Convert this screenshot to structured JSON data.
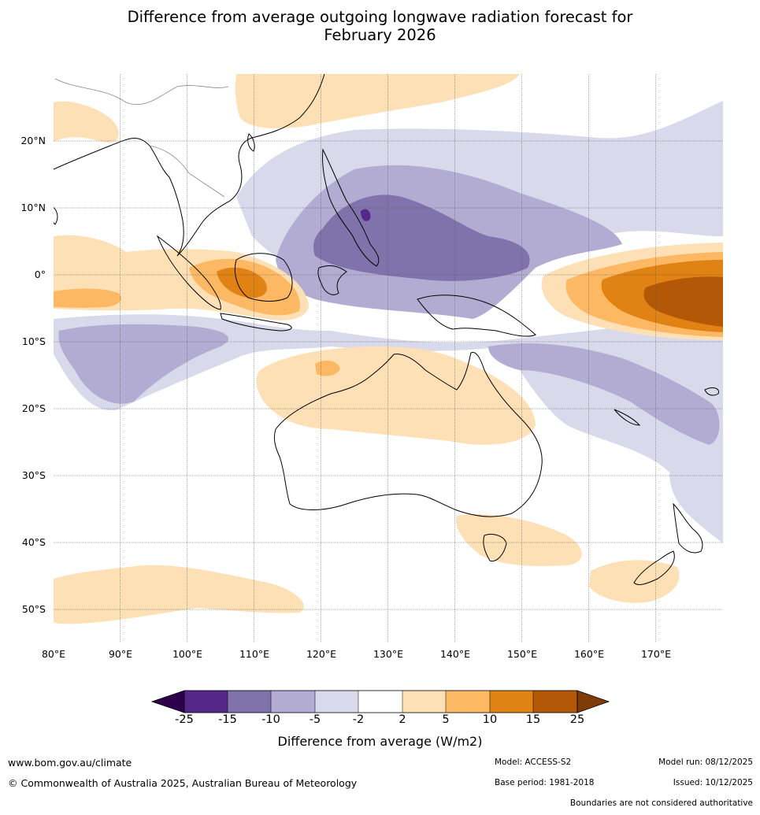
{
  "title": {
    "line1": "Difference from average outgoing longwave radiation forecast for",
    "line2": "February 2026"
  },
  "map": {
    "lat_labels": [
      "20°N",
      "10°N",
      "0°",
      "10°S",
      "20°S",
      "30°S",
      "40°S",
      "50°S"
    ],
    "lon_labels": [
      "80°E",
      "90°E",
      "100°E",
      "110°E",
      "120°E",
      "130°E",
      "140°E",
      "150°E",
      "160°E",
      "170°E"
    ],
    "extent": {
      "lon_min": 80,
      "lon_max": 180,
      "lat_min": -55,
      "lat_max": 30
    }
  },
  "colorbar": {
    "ticks": [
      "-25",
      "-15",
      "-10",
      "-5",
      "-2",
      "2",
      "5",
      "10",
      "15",
      "25"
    ],
    "colors": [
      "#2d004b",
      "#542788",
      "#8073ac",
      "#b2abd2",
      "#d8daeb",
      "#ffffff",
      "#fee0b6",
      "#fdb863",
      "#e08214",
      "#b35806",
      "#7f3b08"
    ],
    "label": "Difference from average (W/m2)"
  },
  "footer": {
    "website": "www.bom.gov.au/climate",
    "copyright": "© Commonwealth of Australia 2025, Australian Bureau of Meteorology",
    "model": "Model: ACCESS-S2",
    "base_period": "Base period: 1981-2018",
    "model_run": "Model run: 08/12/2025",
    "issued": "Issued: 10/12/2025",
    "disclaimer": "Boundaries are not considered authoritative"
  }
}
